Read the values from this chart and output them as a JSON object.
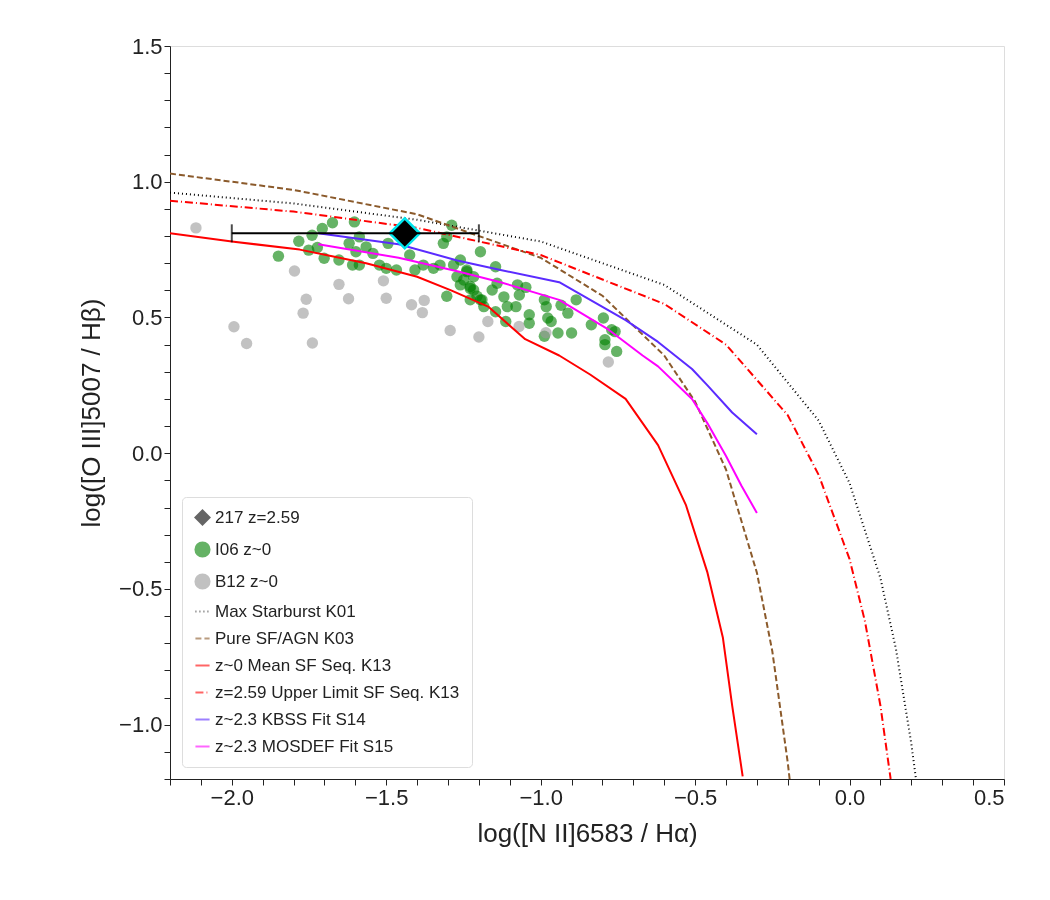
{
  "chart_data": {
    "type": "scatter",
    "xlabel": "log([N II]6583 / Hα)",
    "ylabel": "log([O III]5007 / Hβ)",
    "xlim": [
      -2.2,
      0.5
    ],
    "ylim": [
      -1.2,
      1.5
    ],
    "xticks": [
      {
        "value": -2.2,
        "label": null
      },
      {
        "value": -2.1,
        "label": null
      },
      {
        "value": -2.0,
        "label": "−2.0"
      },
      {
        "value": -1.9,
        "label": null
      },
      {
        "value": -1.8,
        "label": null
      },
      {
        "value": -1.7,
        "label": null
      },
      {
        "value": -1.6,
        "label": null
      },
      {
        "value": -1.5,
        "label": "−1.5"
      },
      {
        "value": -1.4,
        "label": null
      },
      {
        "value": -1.3,
        "label": null
      },
      {
        "value": -1.2,
        "label": null
      },
      {
        "value": -1.1,
        "label": null
      },
      {
        "value": -1.0,
        "label": "−1.0"
      },
      {
        "value": -0.9,
        "label": null
      },
      {
        "value": -0.8,
        "label": null
      },
      {
        "value": -0.7,
        "label": null
      },
      {
        "value": -0.6,
        "label": null
      },
      {
        "value": -0.5,
        "label": "−0.5"
      },
      {
        "value": -0.4,
        "label": null
      },
      {
        "value": -0.3,
        "label": null
      },
      {
        "value": -0.2,
        "label": null
      },
      {
        "value": -0.1,
        "label": null
      },
      {
        "value": 0.0,
        "label": "0.0"
      },
      {
        "value": 0.1,
        "label": null
      },
      {
        "value": 0.2,
        "label": null
      },
      {
        "value": 0.3,
        "label": null
      },
      {
        "value": 0.4,
        "label": null
      },
      {
        "value": 0.5,
        "label": "0.5"
      }
    ],
    "yticks": [
      {
        "value": -1.2,
        "label": null
      },
      {
        "value": -1.1,
        "label": null
      },
      {
        "value": -1.0,
        "label": "−1.0"
      },
      {
        "value": -0.9,
        "label": null
      },
      {
        "value": -0.8,
        "label": null
      },
      {
        "value": -0.7,
        "label": null
      },
      {
        "value": -0.6,
        "label": null
      },
      {
        "value": -0.5,
        "label": "−0.5"
      },
      {
        "value": -0.4,
        "label": null
      },
      {
        "value": -0.3,
        "label": null
      },
      {
        "value": -0.2,
        "label": null
      },
      {
        "value": -0.1,
        "label": null
      },
      {
        "value": 0.0,
        "label": "0.0"
      },
      {
        "value": 0.1,
        "label": null
      },
      {
        "value": 0.2,
        "label": null
      },
      {
        "value": 0.3,
        "label": null
      },
      {
        "value": 0.4,
        "label": null
      },
      {
        "value": 0.5,
        "label": "0.5"
      },
      {
        "value": 0.6,
        "label": null
      },
      {
        "value": 0.7,
        "label": null
      },
      {
        "value": 0.8,
        "label": null
      },
      {
        "value": 0.9,
        "label": null
      },
      {
        "value": 1.0,
        "label": "1.0"
      },
      {
        "value": 1.1,
        "label": null
      },
      {
        "value": 1.2,
        "label": null
      },
      {
        "value": 1.3,
        "label": null
      },
      {
        "value": 1.4,
        "label": null
      },
      {
        "value": 1.5,
        "label": "1.5"
      }
    ],
    "grid": false,
    "legend": "bottom left",
    "series": [
      {
        "name": "217 z=2.59",
        "marker": "diamond",
        "color": "#000000",
        "x": [
          -1.44
        ],
        "values": [
          0.81
        ],
        "xerrors": [
          [
            -2.0,
            -1.2
          ]
        ]
      },
      {
        "name": "I06 z~0",
        "marker": "circle",
        "color": "#008000",
        "x": [
          -1.674,
          -1.707,
          -1.74,
          -1.603,
          -1.783,
          -1.723,
          -1.751,
          -1.849,
          -1.701,
          -1.653,
          -1.609,
          -1.587,
          -1.62,
          -1.587,
          -1.565,
          -1.543,
          -1.598,
          -1.522,
          -1.5,
          -1.467,
          -1.407,
          -1.424,
          -1.494,
          -1.315,
          -1.304,
          -1.288,
          -1.38,
          -1.347,
          -1.326,
          -1.282,
          -1.26,
          -1.239,
          -1.195,
          -1.271,
          -1.249,
          -1.228,
          -1.206,
          -1.304,
          -1.184,
          -1.228,
          -1.146,
          -1.239,
          -1.217,
          -1.26,
          -1.228,
          -1.19,
          -1.141,
          -1.157,
          -1.119,
          -1.075,
          -1.048,
          -1.069,
          -1.108,
          -1.146,
          -1.113,
          -1.08,
          -1.037,
          -1.037,
          -0.988,
          -0.982,
          -0.934,
          -0.885,
          -0.912,
          -0.977,
          -0.966,
          -0.944,
          -0.988,
          -0.9,
          -0.836,
          -0.797,
          -0.759,
          -0.792,
          -0.792,
          -0.754,
          -0.77,
          -1.217,
          -1.195
        ],
        "values": [
          0.849,
          0.828,
          0.803,
          0.852,
          0.781,
          0.758,
          0.748,
          0.726,
          0.718,
          0.712,
          0.693,
          0.693,
          0.773,
          0.797,
          0.76,
          0.736,
          0.742,
          0.693,
          0.681,
          0.675,
          0.675,
          0.73,
          0.773,
          0.773,
          0.797,
          0.84,
          0.693,
          0.681,
          0.693,
          0.693,
          0.712,
          0.675,
          0.742,
          0.65,
          0.638,
          0.614,
          0.578,
          0.578,
          0.54,
          0.565,
          0.687,
          0.669,
          0.65,
          0.62,
          0.607,
          0.565,
          0.626,
          0.601,
          0.576,
          0.62,
          0.611,
          0.583,
          0.54,
          0.521,
          0.485,
          0.54,
          0.51,
          0.479,
          0.565,
          0.54,
          0.545,
          0.565,
          0.516,
          0.498,
          0.485,
          0.443,
          0.431,
          0.443,
          0.473,
          0.498,
          0.448,
          0.418,
          0.4,
          0.375,
          0.455,
          0.601,
          0.565
        ]
      },
      {
        "name": "B12 z~0",
        "marker": "circle",
        "color": "#999999",
        "x": [
          -2.116,
          -1.797,
          -1.653,
          -1.759,
          -1.622,
          -1.769,
          -1.509,
          -1.5,
          -1.418,
          -1.377,
          -1.383,
          -1.993,
          -1.952,
          -1.739,
          -1.293,
          -1.2,
          -1.171,
          -1.07,
          -0.983,
          -0.781
        ],
        "values": [
          0.83,
          0.671,
          0.622,
          0.567,
          0.569,
          0.516,
          0.635,
          0.571,
          0.547,
          0.563,
          0.518,
          0.466,
          0.404,
          0.406,
          0.452,
          0.428,
          0.485,
          0.467,
          0.444,
          0.336
        ]
      },
      {
        "name": "Max Starburst K01",
        "type": "line",
        "line_style": "dotted",
        "color": "#000000",
        "x": [
          -2.2,
          -1.8,
          -1.4,
          -1.0,
          -0.6,
          -0.3,
          -0.1,
          0.0,
          0.1,
          0.15,
          0.2,
          0.215
        ],
        "values": [
          0.96,
          0.92,
          0.86,
          0.78,
          0.62,
          0.4,
          0.12,
          -0.11,
          -0.46,
          -0.72,
          -1.07,
          -1.2
        ]
      },
      {
        "name": "Pure SF/AGN K03",
        "type": "line",
        "line_style": "dashed",
        "color": "#8b5a2b",
        "x": [
          -2.2,
          -1.8,
          -1.4,
          -1.0,
          -0.8,
          -0.6,
          -0.5,
          -0.4,
          -0.3,
          -0.25,
          -0.2,
          -0.194
        ],
        "values": [
          1.03,
          0.97,
          0.88,
          0.72,
          0.58,
          0.36,
          0.19,
          -0.06,
          -0.44,
          -0.73,
          -1.14,
          -1.2
        ]
      },
      {
        "name": "z~0 Mean SF Seq. K13",
        "type": "line",
        "line_style": "solid",
        "color": "#ff0000",
        "x": [
          -2.2,
          -2.0,
          -1.78,
          -1.565,
          -1.4,
          -1.29,
          -1.17,
          -1.05,
          -0.94,
          -0.84,
          -0.725,
          -0.62,
          -0.53,
          -0.46,
          -0.41,
          -0.38,
          -0.346
        ],
        "values": [
          0.81,
          0.78,
          0.75,
          0.7,
          0.65,
          0.6,
          0.54,
          0.42,
          0.36,
          0.29,
          0.2,
          0.03,
          -0.19,
          -0.44,
          -0.68,
          -0.93,
          -1.19
        ]
      },
      {
        "name": "z=2.59 Upper Limit SF Seq. K13",
        "type": "line",
        "line_style": "dashdot",
        "color": "#ff0000",
        "x": [
          -2.2,
          -1.8,
          -1.4,
          -1.0,
          -0.6,
          -0.4,
          -0.2,
          -0.1,
          0.0,
          0.05,
          0.1,
          0.133
        ],
        "values": [
          0.93,
          0.89,
          0.83,
          0.73,
          0.55,
          0.4,
          0.14,
          -0.08,
          -0.39,
          -0.62,
          -0.93,
          -1.2
        ]
      },
      {
        "name": "z~2.3 KBSS Fit S14",
        "type": "line",
        "line_style": "solid",
        "color": "#5b2bff",
        "x": [
          -1.72,
          -1.46,
          -1.27,
          -1.13,
          -0.94,
          -0.725,
          -0.62,
          -0.51,
          -0.46,
          -0.38,
          -0.3
        ],
        "values": [
          0.81,
          0.77,
          0.71,
          0.675,
          0.63,
          0.49,
          0.41,
          0.31,
          0.25,
          0.15,
          0.07
        ]
      },
      {
        "name": "z~2.3 MOSDEF Fit S15",
        "type": "line",
        "line_style": "solid",
        "color": "#ff00ff",
        "x": [
          -1.72,
          -1.46,
          -1.27,
          -1.13,
          -0.94,
          -0.78,
          -0.67,
          -0.62,
          -0.51,
          -0.46,
          -0.4,
          -0.35,
          -0.3
        ],
        "values": [
          0.77,
          0.72,
          0.67,
          0.63,
          0.565,
          0.455,
          0.36,
          0.32,
          0.2,
          0.11,
          -0.01,
          -0.12,
          -0.22
        ]
      }
    ]
  }
}
